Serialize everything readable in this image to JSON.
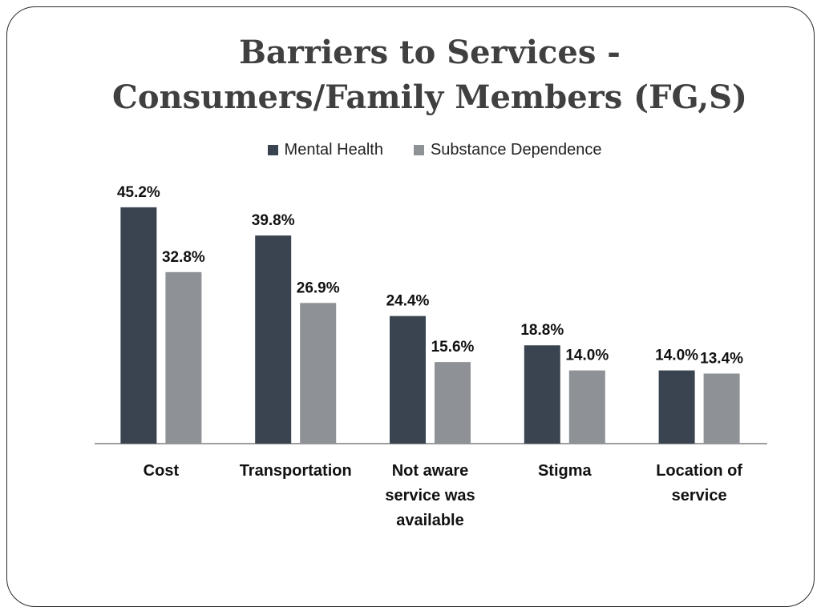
{
  "title_line1": "Barriers to Services -",
  "title_line2": "Consumers/Family Members (FG,S)",
  "chart_data": {
    "type": "bar",
    "title": "Barriers to Services - Consumers/Family Members (FG,S)",
    "categories": [
      [
        "Cost"
      ],
      [
        "Transportation"
      ],
      [
        "Not aware",
        "service was",
        "available"
      ],
      [
        "Stigma"
      ],
      [
        "Location of",
        "service"
      ]
    ],
    "series": [
      {
        "name": "Mental Health",
        "color": "#3a4450",
        "values": [
          45.2,
          39.8,
          24.4,
          18.8,
          14.0
        ],
        "labels": [
          "45.2%",
          "39.8%",
          "24.4%",
          "18.8%",
          "14.0%"
        ]
      },
      {
        "name": "Substance Dependence",
        "color": "#8e9196",
        "values": [
          32.8,
          26.9,
          15.6,
          14.0,
          13.4
        ],
        "labels": [
          "32.8%",
          "26.9%",
          "15.6%",
          "14.0%",
          "13.4%"
        ]
      }
    ],
    "ylim": [
      0,
      50
    ],
    "grid": false,
    "legend_position": "top"
  }
}
